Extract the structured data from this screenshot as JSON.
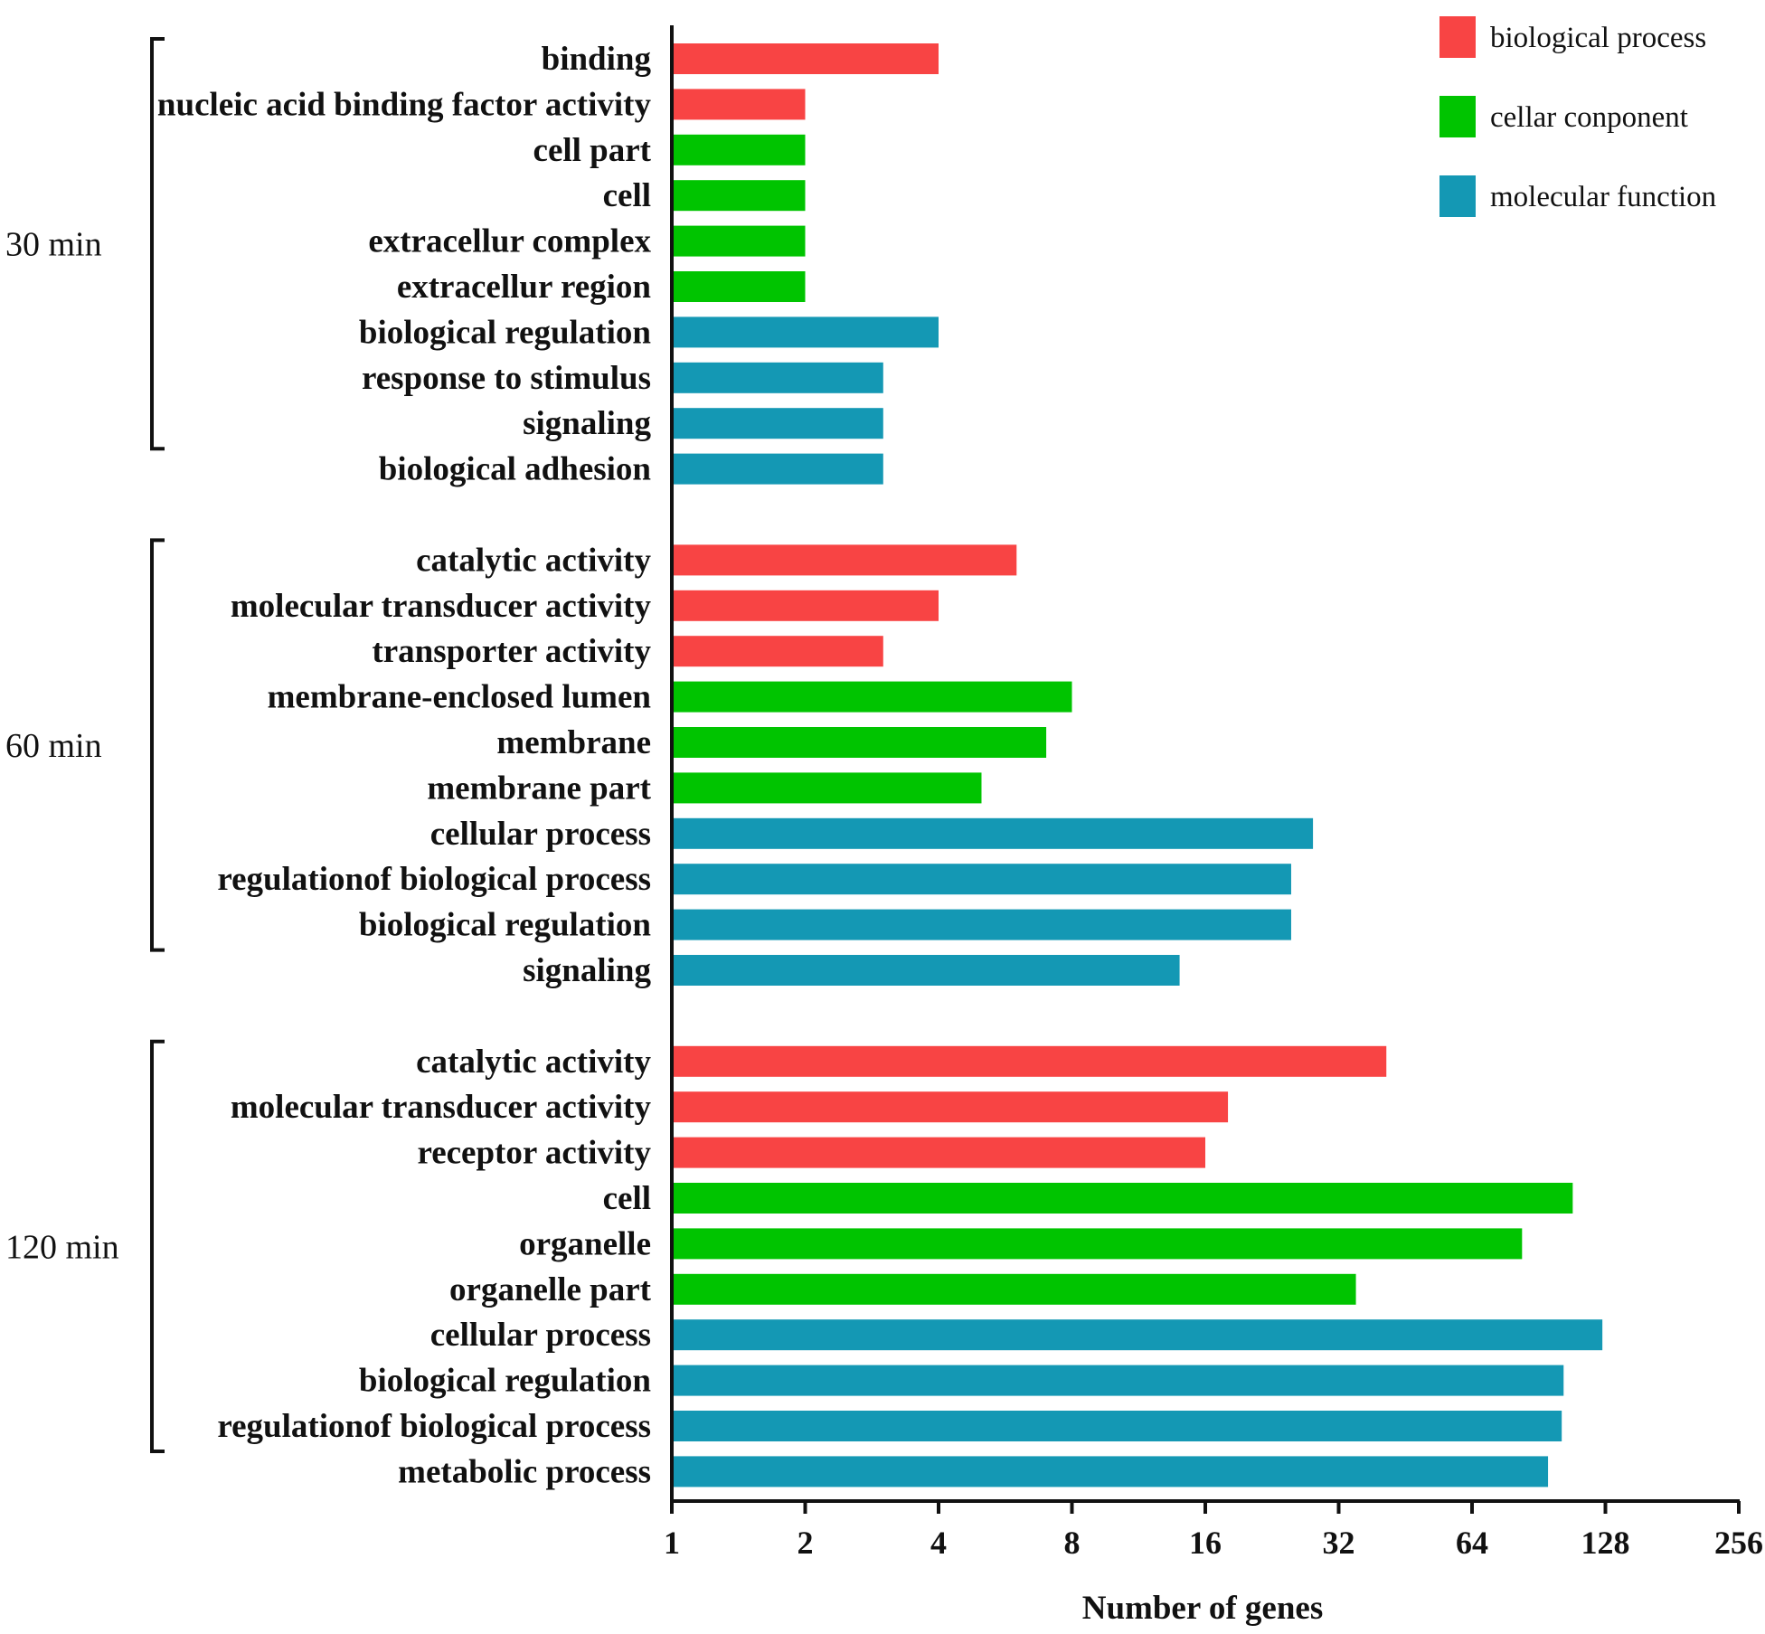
{
  "chart_data": {
    "type": "bar",
    "orientation": "horizontal",
    "xscale": "log2",
    "xlabel": "Number of  genes",
    "xlim": [
      1,
      256
    ],
    "xticks": [
      "1",
      "2",
      "4",
      "8",
      "16",
      "32",
      "64",
      "128",
      "256"
    ],
    "legend_position": "top-right",
    "legend": [
      {
        "key": "bp",
        "label": "biological process",
        "color": "#f84444"
      },
      {
        "key": "cc",
        "label": "cellar conponent",
        "color": "#00c400"
      },
      {
        "key": "mf",
        "label": "molecular function",
        "color": "#1498b4"
      }
    ],
    "groups": [
      {
        "label": "30 min",
        "bars": [
          {
            "category": "binding",
            "value": 4,
            "series": "bp"
          },
          {
            "category": "nucleic acid binding factor activity",
            "value": 2,
            "series": "bp"
          },
          {
            "category": "cell part",
            "value": 2,
            "series": "cc"
          },
          {
            "category": "cell",
            "value": 2,
            "series": "cc"
          },
          {
            "category": "extracellur complex",
            "value": 2,
            "series": "cc"
          },
          {
            "category": "extracellur region",
            "value": 2,
            "series": "cc"
          },
          {
            "category": "biological regulation",
            "value": 4,
            "series": "mf"
          },
          {
            "category": "response to stimulus",
            "value": 3,
            "series": "mf"
          },
          {
            "category": "signaling",
            "value": 3,
            "series": "mf"
          },
          {
            "category": "biological adhesion",
            "value": 3,
            "series": "mf"
          }
        ]
      },
      {
        "label": "60 min",
        "bars": [
          {
            "category": "catalytic activity",
            "value": 6,
            "series": "bp"
          },
          {
            "category": "molecular transducer activity",
            "value": 4,
            "series": "bp"
          },
          {
            "category": "transporter activity",
            "value": 3,
            "series": "bp"
          },
          {
            "category": "membrane-enclosed lumen",
            "value": 8,
            "series": "cc"
          },
          {
            "category": "membrane",
            "value": 7,
            "series": "cc"
          },
          {
            "category": "membrane part",
            "value": 5,
            "series": "cc"
          },
          {
            "category": "cellular process",
            "value": 28,
            "series": "mf"
          },
          {
            "category": "regulationof biological process",
            "value": 25,
            "series": "mf"
          },
          {
            "category": "biological regulation",
            "value": 25,
            "series": "mf"
          },
          {
            "category": "signaling",
            "value": 14,
            "series": "mf"
          }
        ]
      },
      {
        "label": "120 min",
        "bars": [
          {
            "category": "catalytic activity",
            "value": 41,
            "series": "bp"
          },
          {
            "category": "molecular transducer activity",
            "value": 18,
            "series": "bp"
          },
          {
            "category": "receptor activity",
            "value": 16,
            "series": "bp"
          },
          {
            "category": "cell",
            "value": 108,
            "series": "cc"
          },
          {
            "category": "organelle",
            "value": 83,
            "series": "cc"
          },
          {
            "category": "organelle part",
            "value": 35,
            "series": "cc"
          },
          {
            "category": "cellular process",
            "value": 126,
            "series": "mf"
          },
          {
            "category": "biological regulation",
            "value": 103,
            "series": "mf"
          },
          {
            "category": "regulationof biological process",
            "value": 102,
            "series": "mf"
          },
          {
            "category": "metabolic process",
            "value": 95,
            "series": "mf"
          }
        ]
      }
    ]
  }
}
